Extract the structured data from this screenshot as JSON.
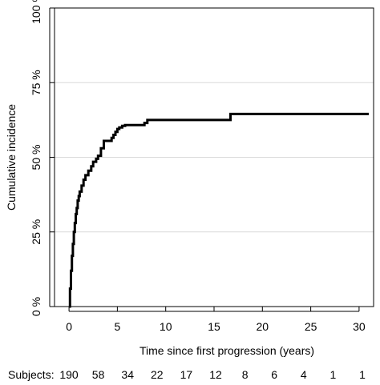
{
  "chart_data": {
    "type": "line",
    "xlabel": "Time since first progression (years)",
    "ylabel": "Cumulative incidence",
    "xlim": [
      -1.5,
      31.5
    ],
    "ylim": [
      0,
      100
    ],
    "x_ticks": [
      0,
      5,
      10,
      15,
      20,
      25,
      30
    ],
    "y_ticks": [
      0,
      25,
      50,
      75,
      100
    ],
    "y_tick_labels": [
      "0 %",
      "25 %",
      "50 %",
      "75 %",
      "100 %"
    ],
    "grid": "horizontal",
    "step_curve": true,
    "series": [
      {
        "x": [
          0.0,
          0.1,
          0.2,
          0.3,
          0.4,
          0.5,
          0.6,
          0.7,
          0.8,
          0.9,
          1.0,
          1.1,
          1.3,
          1.5,
          1.7,
          2.0,
          2.3,
          2.5,
          2.8,
          3.0,
          3.3,
          3.6,
          3.8,
          4.2,
          4.4,
          4.6,
          4.8,
          5.0,
          5.2,
          5.5,
          5.8,
          7.8,
          8.1,
          16.7,
          31.0
        ],
        "y": [
          0.0,
          6.0,
          12.0,
          17.0,
          21.0,
          25.0,
          28.0,
          31.0,
          33.0,
          35.5,
          37.0,
          38.5,
          40.5,
          42.5,
          44.0,
          45.5,
          47.0,
          48.5,
          49.5,
          50.5,
          53.0,
          55.5,
          55.5,
          55.5,
          56.5,
          57.5,
          58.5,
          59.5,
          60.0,
          60.5,
          60.8,
          61.5,
          62.5,
          64.5,
          64.5
        ]
      }
    ],
    "risk_table": {
      "label": "Subjects:",
      "x": [
        0,
        2.5,
        5,
        7.5,
        10,
        12.5,
        15,
        17.5,
        20,
        22.5,
        25
      ],
      "values": [
        "190",
        "58",
        "34",
        "22",
        "17",
        "12",
        "8",
        "6",
        "4",
        "1",
        "1"
      ]
    }
  }
}
